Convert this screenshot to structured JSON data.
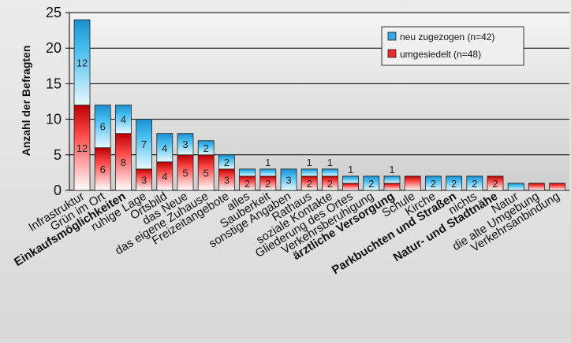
{
  "chart_data": {
    "type": "bar",
    "stacked": true,
    "title": "",
    "xlabel": "",
    "ylabel": "Anzahl der Befragten",
    "ylim": [
      0,
      25
    ],
    "yticks": [
      0,
      5,
      10,
      15,
      20,
      25
    ],
    "grid": true,
    "legend_position": "top-right",
    "categories": [
      "Infrastruktur",
      "Grün im Ort",
      "Einkaufsmöglichkeiten",
      "ruhige Lage",
      "Ortsbild",
      "das Neue",
      "das eigene Zuhause",
      "Freizeitangebote",
      "alles",
      "Sauberkeit",
      "sonstige Angaben",
      "Rathaus",
      "soziale Kontakte",
      "Gliederung des Ortes",
      "Verkehrsberuhigung",
      "ärztliche Versorgung",
      "Schule",
      "Kirche",
      "Parkbuchten und Straßen",
      "nichts",
      "Natur- und Stadtnähe",
      "Natur",
      "die alte Umgebung",
      "Verkehrsanbindung"
    ],
    "series": [
      {
        "name": "umgesiedelt (n=48)",
        "color": "#ee2a2a",
        "values": [
          12,
          6,
          8,
          3,
          4,
          5,
          5,
          3,
          2,
          2,
          0,
          2,
          2,
          1,
          0,
          1,
          2,
          0,
          0,
          0,
          2,
          0,
          1,
          1
        ],
        "labels": [
          "12",
          "6",
          "8",
          "3",
          "4",
          "5",
          "5",
          "3",
          "2",
          "2",
          "",
          "2",
          "2",
          "",
          "",
          "",
          "",
          "",
          "",
          "",
          "2",
          "",
          "",
          ""
        ]
      },
      {
        "name": "neu zugezogen (n=42)",
        "color": "#35a9e4",
        "values": [
          12,
          6,
          4,
          7,
          4,
          3,
          2,
          2,
          1,
          1,
          3,
          1,
          1,
          1,
          2,
          1,
          0,
          2,
          2,
          2,
          0,
          1,
          0,
          0
        ],
        "labels": [
          "12",
          "6",
          "4",
          "7",
          "4",
          "3",
          "2",
          "2",
          "",
          "",
          "3",
          "",
          "",
          "",
          "2",
          "",
          "",
          "2",
          "2",
          "2",
          "",
          "",
          "",
          ""
        ]
      }
    ],
    "above_labels": [
      "",
      "",
      "",
      "",
      "",
      "",
      "",
      "",
      "",
      "1",
      "",
      "1",
      "1",
      "1",
      "",
      "1",
      "",
      "",
      "",
      "",
      "",
      "",
      "",
      ""
    ]
  }
}
